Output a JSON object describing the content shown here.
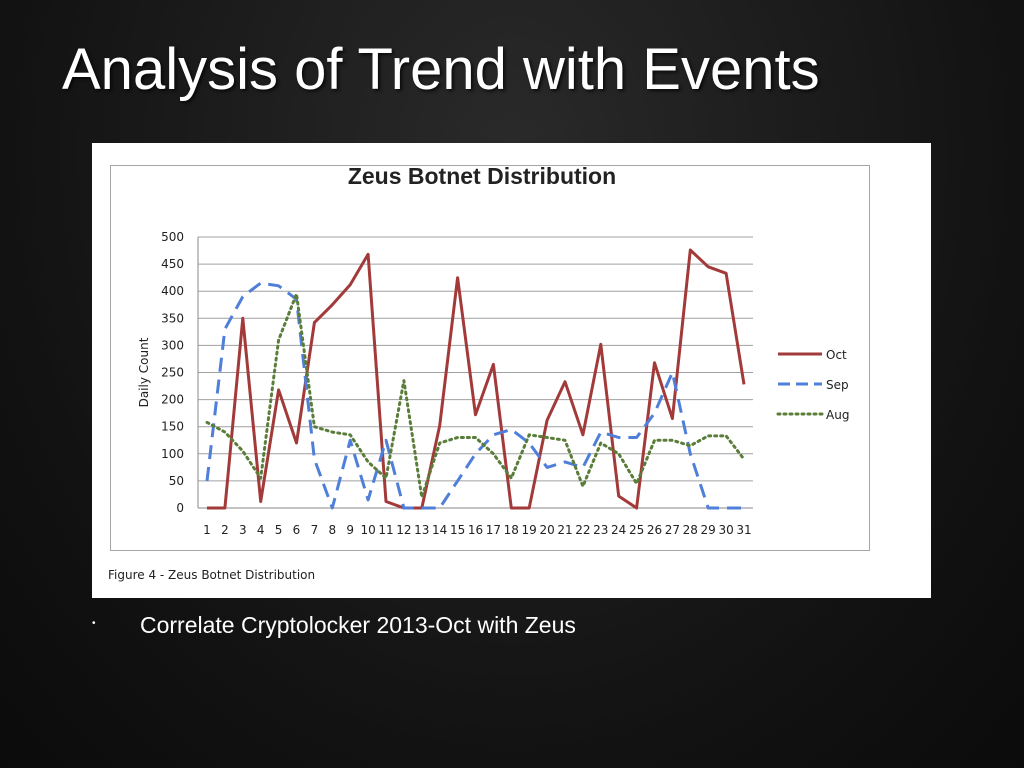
{
  "slide": {
    "title": "Analysis of Trend with Events",
    "bullet_symbol": "•",
    "bullet_text": "Correlate Cryptolocker 2013-Oct with Zeus"
  },
  "figure": {
    "caption": "Figure 4 - Zeus Botnet Distribution"
  },
  "colors": {
    "background": "#121212",
    "oct": "#a33a3a",
    "sep": "#4f7fd9",
    "aug": "#5a7d3a",
    "grid": "#a0a0a0"
  },
  "chart_data": {
    "type": "line",
    "title": "Zeus Botnet Distribution",
    "xlabel": "",
    "ylabel": "Daily Count",
    "ylim": [
      0,
      500
    ],
    "yticks": [
      0,
      50,
      100,
      150,
      200,
      250,
      300,
      350,
      400,
      450,
      500
    ],
    "grid": true,
    "legend_position": "right",
    "categories": [
      1,
      2,
      3,
      4,
      5,
      6,
      7,
      8,
      9,
      10,
      11,
      12,
      13,
      14,
      15,
      16,
      17,
      18,
      19,
      20,
      21,
      22,
      23,
      24,
      25,
      26,
      27,
      28,
      29,
      30,
      31
    ],
    "series": [
      {
        "name": "Oct",
        "style": "solid",
        "color": "#a33a3a",
        "values": [
          0,
          0,
          350,
          12,
          218,
          120,
          342,
          375,
          412,
          468,
          12,
          0,
          0,
          152,
          425,
          172,
          265,
          0,
          0,
          162,
          233,
          135,
          302,
          22,
          0,
          268,
          165,
          476,
          445,
          433,
          228
        ]
      },
      {
        "name": "Sep",
        "style": "dashed",
        "color": "#4f7fd9",
        "values": [
          50,
          330,
          390,
          415,
          410,
          385,
          90,
          0,
          125,
          15,
          125,
          0,
          0,
          0,
          50,
          100,
          135,
          145,
          120,
          75,
          85,
          75,
          140,
          130,
          130,
          175,
          250,
          100,
          0,
          0,
          0
        ]
      },
      {
        "name": "Aug",
        "style": "dotted",
        "color": "#5a7d3a",
        "values": [
          158,
          140,
          105,
          55,
          310,
          395,
          150,
          140,
          135,
          85,
          55,
          235,
          20,
          120,
          130,
          130,
          100,
          55,
          135,
          130,
          125,
          40,
          120,
          100,
          45,
          125,
          125,
          115,
          133,
          133,
          90
        ]
      }
    ]
  }
}
